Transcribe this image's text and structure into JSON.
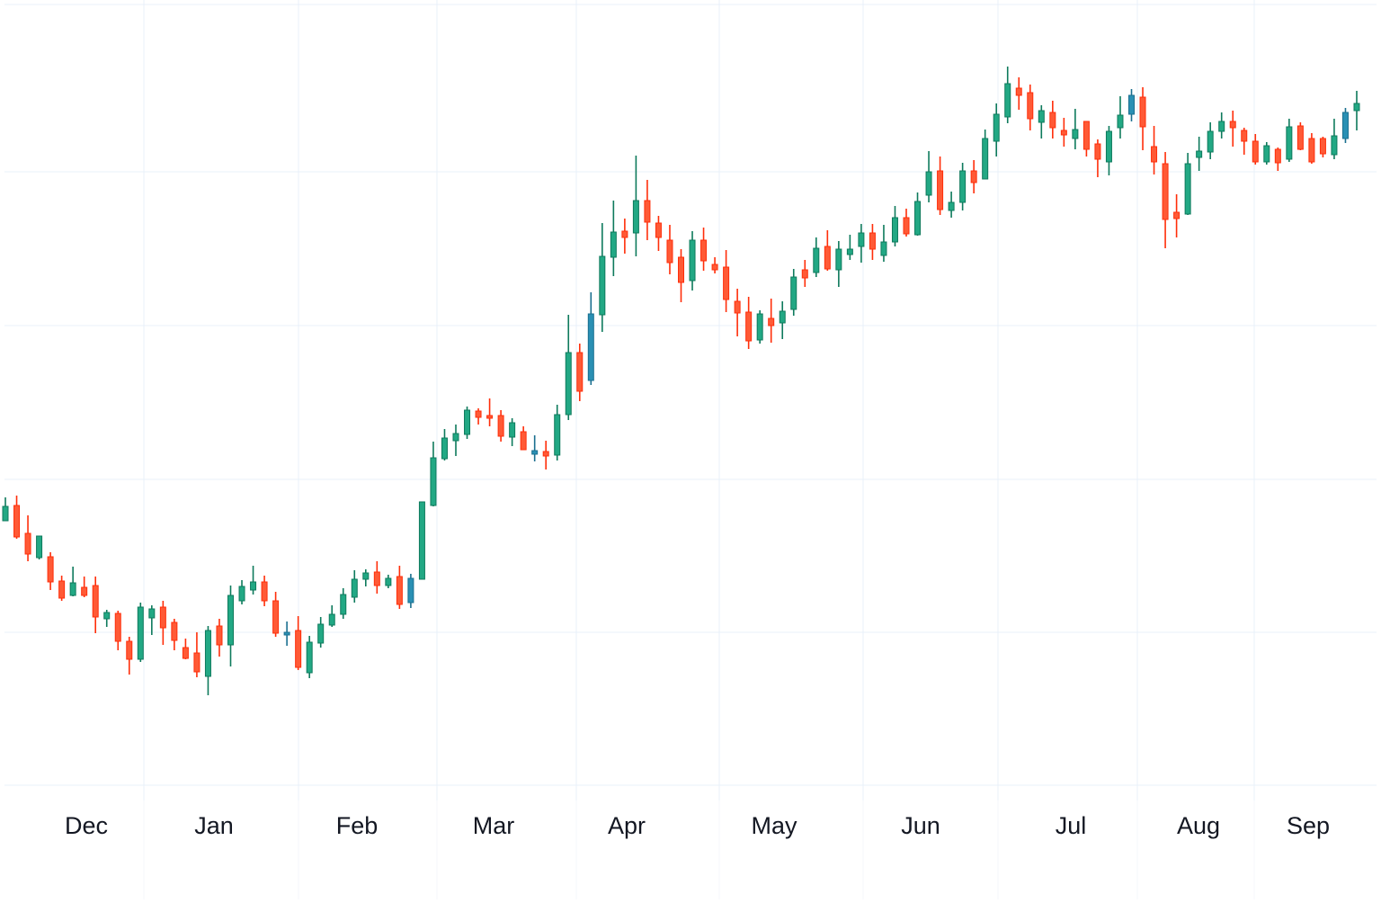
{
  "chart_data": {
    "type": "candlestick",
    "title": "",
    "xlabel": "",
    "ylabel": "",
    "ylim": [
      12.7,
      99.5
    ],
    "grid": true,
    "legend": "none",
    "xtick_labels": [
      "Dec",
      "Jan",
      "Feb",
      "Mar",
      "Apr",
      "May",
      "Jun",
      "Jul",
      "Aug",
      "Sep"
    ],
    "ohlc_order": [
      "open",
      "high",
      "low",
      "close"
    ],
    "ohlc": [
      [
        42.1,
        44.7,
        42.1,
        43.7
      ],
      [
        43.8,
        44.9,
        40.1,
        40.3
      ],
      [
        40.7,
        42.7,
        37.6,
        38.4
      ],
      [
        38.0,
        40.4,
        37.8,
        40.4
      ],
      [
        38.1,
        38.6,
        34.4,
        35.3
      ],
      [
        35.4,
        36.0,
        33.2,
        33.5
      ],
      [
        33.8,
        37.0,
        33.7,
        35.2
      ],
      [
        34.7,
        35.9,
        33.6,
        33.8
      ],
      [
        34.9,
        35.9,
        29.6,
        31.4
      ],
      [
        31.2,
        32.2,
        30.3,
        31.9
      ],
      [
        31.8,
        32.1,
        27.7,
        28.7
      ],
      [
        28.7,
        29.2,
        25.0,
        26.7
      ],
      [
        26.7,
        33.0,
        26.4,
        32.5
      ],
      [
        31.3,
        32.7,
        29.4,
        32.3
      ],
      [
        32.5,
        33.2,
        28.3,
        30.2
      ],
      [
        30.8,
        31.2,
        27.7,
        28.8
      ],
      [
        28.0,
        29.0,
        26.7,
        26.8
      ],
      [
        27.4,
        29.7,
        24.7,
        25.3
      ],
      [
        24.8,
        30.4,
        22.7,
        29.9
      ],
      [
        30.4,
        31.2,
        27.0,
        28.3
      ],
      [
        28.3,
        34.9,
        25.9,
        33.8
      ],
      [
        33.2,
        35.5,
        32.8,
        34.8
      ],
      [
        34.4,
        37.1,
        33.9,
        35.3
      ],
      [
        35.3,
        36.0,
        32.6,
        33.2
      ],
      [
        33.2,
        34.2,
        29.2,
        29.6
      ],
      [
        29.4,
        30.9,
        28.2,
        29.7
      ],
      [
        29.9,
        31.5,
        25.5,
        25.8
      ],
      [
        25.2,
        29.3,
        24.6,
        28.6
      ],
      [
        28.5,
        31.4,
        28.0,
        30.6
      ],
      [
        30.5,
        32.7,
        30.3,
        31.7
      ],
      [
        31.7,
        34.6,
        31.2,
        33.9
      ],
      [
        33.6,
        36.6,
        33.0,
        35.6
      ],
      [
        35.6,
        36.7,
        34.8,
        36.3
      ],
      [
        36.4,
        37.6,
        34.0,
        34.9
      ],
      [
        34.9,
        36.1,
        34.6,
        35.7
      ],
      [
        35.9,
        37.1,
        32.3,
        32.8
      ],
      [
        33.0,
        36.2,
        32.4,
        35.7
      ],
      [
        35.6,
        44.2,
        35.6,
        44.2
      ],
      [
        43.8,
        50.9,
        43.7,
        49.1
      ],
      [
        49.0,
        52.3,
        48.8,
        51.3
      ],
      [
        51.0,
        52.8,
        49.3,
        51.8
      ],
      [
        51.7,
        54.8,
        51.2,
        54.4
      ],
      [
        54.3,
        54.6,
        52.8,
        53.6
      ],
      [
        53.8,
        55.7,
        52.6,
        53.5
      ],
      [
        53.8,
        54.4,
        50.9,
        51.5
      ],
      [
        51.4,
        53.5,
        50.4,
        53.0
      ],
      [
        52.0,
        52.6,
        50.0,
        50.0
      ],
      [
        49.5,
        51.6,
        48.7,
        49.9
      ],
      [
        49.8,
        51.0,
        47.8,
        49.3
      ],
      [
        49.4,
        55.0,
        48.8,
        53.9
      ],
      [
        53.9,
        65.0,
        53.3,
        60.8
      ],
      [
        60.8,
        61.8,
        55.4,
        56.5
      ],
      [
        57.7,
        67.5,
        57.2,
        65.1
      ],
      [
        65.0,
        75.2,
        63.1,
        71.5
      ],
      [
        71.4,
        77.7,
        69.3,
        74.2
      ],
      [
        74.3,
        75.7,
        71.8,
        73.6
      ],
      [
        74.1,
        82.7,
        71.5,
        77.7
      ],
      [
        77.7,
        80.0,
        73.3,
        75.3
      ],
      [
        75.2,
        76.0,
        72.1,
        73.6
      ],
      [
        73.3,
        75.0,
        69.5,
        70.8
      ],
      [
        71.4,
        72.3,
        66.4,
        68.6
      ],
      [
        68.8,
        74.3,
        67.7,
        73.3
      ],
      [
        73.3,
        74.7,
        69.9,
        71.0
      ],
      [
        70.6,
        71.4,
        69.6,
        70.0
      ],
      [
        70.3,
        72.2,
        65.3,
        66.7
      ],
      [
        66.5,
        67.9,
        62.6,
        65.2
      ],
      [
        65.3,
        67.0,
        61.2,
        62.1
      ],
      [
        62.2,
        65.5,
        61.8,
        65.1
      ],
      [
        64.6,
        66.8,
        61.9,
        63.8
      ],
      [
        64.1,
        66.5,
        62.3,
        65.4
      ],
      [
        65.6,
        70.1,
        64.9,
        69.2
      ],
      [
        70.0,
        71.1,
        68.1,
        69.1
      ],
      [
        69.7,
        73.6,
        69.2,
        72.4
      ],
      [
        72.6,
        74.4,
        69.9,
        70.1
      ],
      [
        70.0,
        73.2,
        68.1,
        72.3
      ],
      [
        71.7,
        73.9,
        71.1,
        72.3
      ],
      [
        72.6,
        75.1,
        70.8,
        74.1
      ],
      [
        74.1,
        75.1,
        71.1,
        72.3
      ],
      [
        71.6,
        75.0,
        70.9,
        73.1
      ],
      [
        73.1,
        77.1,
        72.6,
        75.8
      ],
      [
        75.8,
        76.8,
        73.7,
        74.0
      ],
      [
        73.9,
        78.6,
        73.8,
        77.6
      ],
      [
        78.3,
        83.2,
        77.5,
        80.9
      ],
      [
        81.0,
        82.6,
        76.1,
        76.7
      ],
      [
        76.6,
        78.7,
        75.8,
        77.5
      ],
      [
        77.5,
        81.9,
        76.6,
        81.0
      ],
      [
        81.0,
        82.2,
        78.5,
        79.7
      ],
      [
        80.1,
        85.6,
        80.1,
        84.6
      ],
      [
        84.3,
        88.5,
        82.6,
        87.3
      ],
      [
        87.0,
        92.6,
        86.3,
        90.7
      ],
      [
        90.2,
        91.4,
        87.8,
        89.4
      ],
      [
        89.7,
        90.6,
        85.5,
        86.8
      ],
      [
        86.4,
        88.3,
        84.6,
        87.7
      ],
      [
        87.5,
        88.8,
        84.6,
        85.8
      ],
      [
        85.5,
        86.9,
        83.7,
        85.0
      ],
      [
        84.6,
        87.9,
        83.4,
        85.6
      ],
      [
        86.5,
        86.5,
        82.6,
        83.4
      ],
      [
        84.0,
        84.5,
        80.3,
        82.3
      ],
      [
        82.0,
        86.0,
        80.5,
        85.4
      ],
      [
        85.8,
        89.3,
        84.6,
        87.2
      ],
      [
        87.3,
        90.1,
        86.5,
        89.4
      ],
      [
        89.2,
        90.3,
        83.3,
        85.9
      ],
      [
        83.7,
        86.0,
        80.6,
        82.0
      ],
      [
        81.8,
        83.1,
        72.4,
        75.6
      ],
      [
        76.4,
        78.4,
        73.6,
        75.7
      ],
      [
        76.2,
        83.0,
        76.1,
        81.8
      ],
      [
        82.5,
        84.8,
        81.0,
        83.2
      ],
      [
        83.1,
        86.4,
        82.3,
        85.4
      ],
      [
        85.4,
        87.5,
        84.6,
        86.5
      ],
      [
        86.5,
        87.7,
        83.7,
        85.8
      ],
      [
        85.5,
        85.8,
        82.8,
        84.3
      ],
      [
        84.3,
        85.1,
        81.7,
        82.0
      ],
      [
        82.0,
        84.2,
        81.7,
        83.8
      ],
      [
        83.4,
        83.6,
        81.0,
        81.9
      ],
      [
        82.3,
        86.8,
        82.0,
        85.9
      ],
      [
        86.0,
        86.4,
        83.3,
        83.4
      ],
      [
        84.6,
        85.2,
        81.8,
        82.0
      ],
      [
        84.6,
        84.8,
        82.5,
        82.9
      ],
      [
        82.8,
        86.8,
        82.3,
        84.9
      ],
      [
        84.6,
        88.0,
        84.1,
        87.5
      ],
      [
        87.7,
        89.9,
        85.5,
        88.5
      ]
    ],
    "highlighted_candles": [
      25,
      36,
      47,
      52,
      100,
      119
    ],
    "colors": {
      "up": "#22a884",
      "up_border": "#0e7a5c",
      "down": "#ff5a36",
      "down_border": "#ff2e0a",
      "highlight": "#2a90b4",
      "highlight_border": "#1a6f8f",
      "grid": "#e8f0fa",
      "text": "#131722"
    }
  }
}
